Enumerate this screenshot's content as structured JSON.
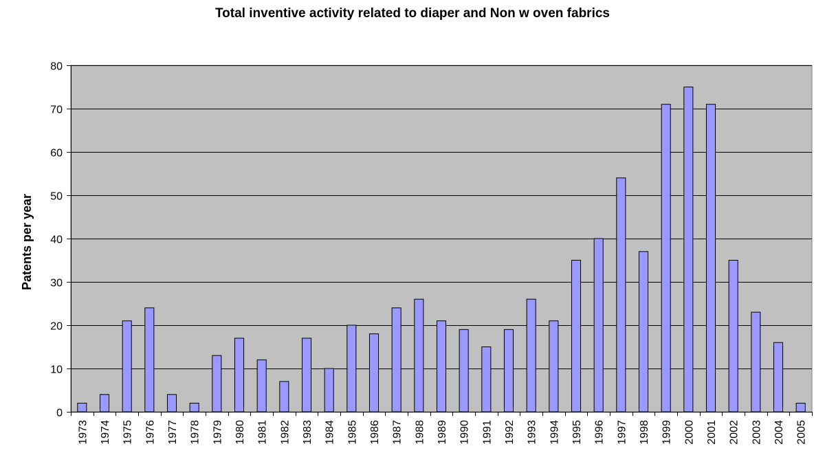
{
  "chart_data": {
    "type": "bar",
    "title": "Total inventive activity related to diaper and Non w oven fabrics",
    "xlabel": "",
    "ylabel": "Patents per year",
    "categories": [
      "1973",
      "1974",
      "1975",
      "1976",
      "1977",
      "1978",
      "1979",
      "1980",
      "1981",
      "1982",
      "1983",
      "1984",
      "1985",
      "1986",
      "1987",
      "1988",
      "1989",
      "1990",
      "1991",
      "1992",
      "1993",
      "1994",
      "1995",
      "1996",
      "1997",
      "1998",
      "1999",
      "2000",
      "2001",
      "2002",
      "2003",
      "2004",
      "2005"
    ],
    "values": [
      2,
      4,
      21,
      24,
      4,
      2,
      13,
      17,
      12,
      7,
      17,
      10,
      20,
      18,
      24,
      26,
      21,
      19,
      15,
      19,
      26,
      21,
      35,
      40,
      54,
      37,
      71,
      75,
      71,
      35,
      23,
      16,
      2
    ],
    "ylim": [
      0,
      80
    ],
    "yticks": [
      0,
      10,
      20,
      30,
      40,
      50,
      60,
      70,
      80
    ],
    "grid": true,
    "legend": "none",
    "colors": {
      "plot_background": "#C0C0C0",
      "bar_fill": "#9999FF",
      "bar_stroke": "#000000",
      "gridline": "#000000"
    }
  }
}
